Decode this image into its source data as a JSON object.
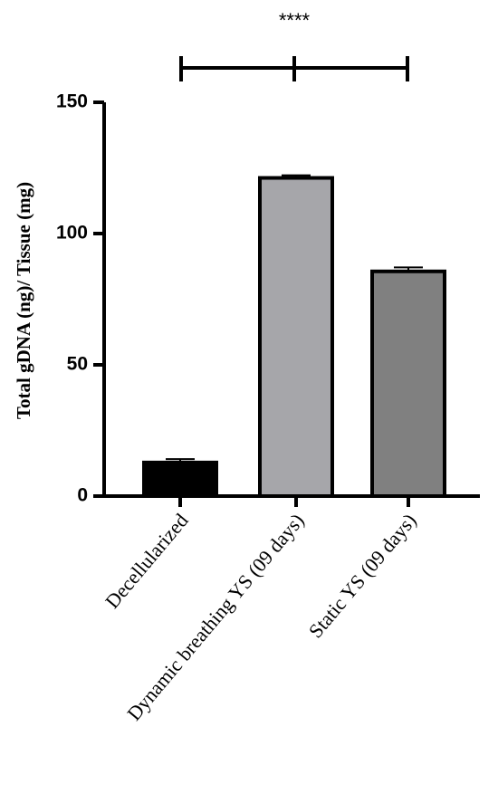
{
  "chart_data": {
    "type": "bar",
    "y_label": "Total gDNA (ng)/ Tissue (mg)",
    "annotation": "****",
    "categories": [
      "Decellularized",
      "Dynamic breathing YS (09 days)",
      "Static YS (09 days)"
    ],
    "values": [
      12.8,
      121.2,
      85.6
    ],
    "errors": [
      1.3,
      1.0,
      1.5
    ],
    "colors": [
      "#000000",
      "#a6a6aa",
      "#808080"
    ],
    "ylim": [
      0,
      150
    ],
    "yticks": [
      0,
      50,
      100,
      150
    ]
  }
}
